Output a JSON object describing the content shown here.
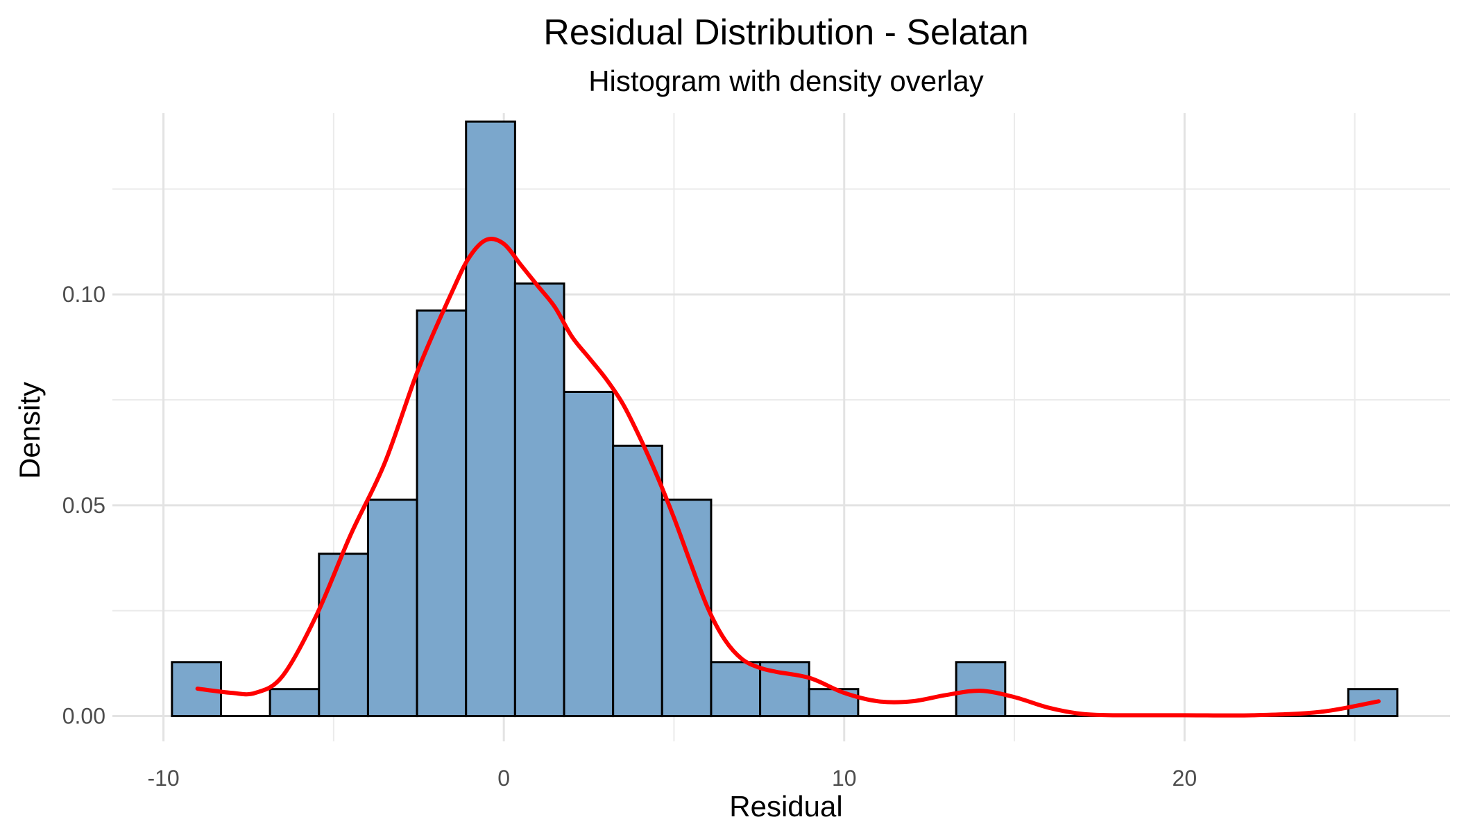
{
  "chart_data": {
    "type": "histogram",
    "title": "Residual Distribution - Selatan",
    "subtitle": "Histogram with density overlay",
    "xlabel": "Residual",
    "ylabel": "Density",
    "xlim": [
      -11.5,
      27.8
    ],
    "ylim": [
      -0.006,
      0.143
    ],
    "x_ticks": [
      {
        "value": -10,
        "label": "-10"
      },
      {
        "value": 0,
        "label": "0"
      },
      {
        "value": 10,
        "label": "10"
      },
      {
        "value": 20,
        "label": "20"
      }
    ],
    "y_ticks": [
      {
        "value": 0.0,
        "label": "0.00"
      },
      {
        "value": 0.05,
        "label": "0.05"
      },
      {
        "value": 0.1,
        "label": "0.10"
      }
    ],
    "x_minor": [
      -5,
      5,
      15,
      25
    ],
    "y_minor": [
      0.025,
      0.075,
      0.125
    ],
    "grid": true,
    "bar_fill": "#7ba7cc",
    "bar_stroke": "#000000",
    "density_color": "#ff0000",
    "bins": [
      {
        "x0": -9.75,
        "x1": -8.31,
        "density": 0.0128
      },
      {
        "x0": -8.31,
        "x1": -6.87,
        "density": 0.0
      },
      {
        "x0": -6.87,
        "x1": -5.43,
        "density": 0.0064
      },
      {
        "x0": -5.43,
        "x1": -3.99,
        "density": 0.0385
      },
      {
        "x0": -3.99,
        "x1": -2.55,
        "density": 0.0513
      },
      {
        "x0": -2.55,
        "x1": -1.11,
        "density": 0.0962
      },
      {
        "x0": -1.11,
        "x1": 0.33,
        "density": 0.141
      },
      {
        "x0": 0.33,
        "x1": 1.77,
        "density": 0.1026
      },
      {
        "x0": 1.77,
        "x1": 3.21,
        "density": 0.0769
      },
      {
        "x0": 3.21,
        "x1": 4.65,
        "density": 0.0641
      },
      {
        "x0": 4.65,
        "x1": 6.09,
        "density": 0.0513
      },
      {
        "x0": 6.09,
        "x1": 7.53,
        "density": 0.0128
      },
      {
        "x0": 7.53,
        "x1": 8.97,
        "density": 0.0128
      },
      {
        "x0": 8.97,
        "x1": 10.41,
        "density": 0.0064
      },
      {
        "x0": 10.41,
        "x1": 11.85,
        "density": 0.0
      },
      {
        "x0": 11.85,
        "x1": 13.29,
        "density": 0.0
      },
      {
        "x0": 13.29,
        "x1": 14.73,
        "density": 0.0128
      },
      {
        "x0": 14.73,
        "x1": 16.17,
        "density": 0.0
      },
      {
        "x0": 16.17,
        "x1": 17.61,
        "density": 0.0
      },
      {
        "x0": 17.61,
        "x1": 19.05,
        "density": 0.0
      },
      {
        "x0": 19.05,
        "x1": 20.49,
        "density": 0.0
      },
      {
        "x0": 20.49,
        "x1": 21.93,
        "density": 0.0
      },
      {
        "x0": 21.93,
        "x1": 23.37,
        "density": 0.0
      },
      {
        "x0": 23.37,
        "x1": 24.81,
        "density": 0.0
      },
      {
        "x0": 24.81,
        "x1": 26.25,
        "density": 0.0064
      }
    ],
    "density_curve": {
      "x": [
        -9.0,
        -8.0,
        -7.3,
        -6.5,
        -5.5,
        -4.5,
        -3.5,
        -2.5,
        -1.5,
        -1.0,
        -0.5,
        0.0,
        0.5,
        1.0,
        1.5,
        2.0,
        2.5,
        3.0,
        3.5,
        4.0,
        4.5,
        5.0,
        5.5,
        6.0,
        6.5,
        7.0,
        7.5,
        8.0,
        9.0,
        10.0,
        11.0,
        12.0,
        13.0,
        14.0,
        15.0,
        16.0,
        17.0,
        18.0,
        20.0,
        22.0,
        24.0,
        25.7
      ],
      "y": [
        0.0065,
        0.0055,
        0.0055,
        0.0095,
        0.024,
        0.043,
        0.06,
        0.0825,
        0.101,
        0.109,
        0.113,
        0.112,
        0.107,
        0.102,
        0.097,
        0.09,
        0.085,
        0.08,
        0.074,
        0.066,
        0.057,
        0.047,
        0.036,
        0.0255,
        0.018,
        0.0135,
        0.0115,
        0.0105,
        0.009,
        0.0055,
        0.0035,
        0.0035,
        0.005,
        0.006,
        0.0045,
        0.002,
        0.0005,
        0.0002,
        0.0002,
        0.0002,
        0.001,
        0.0035
      ]
    }
  }
}
